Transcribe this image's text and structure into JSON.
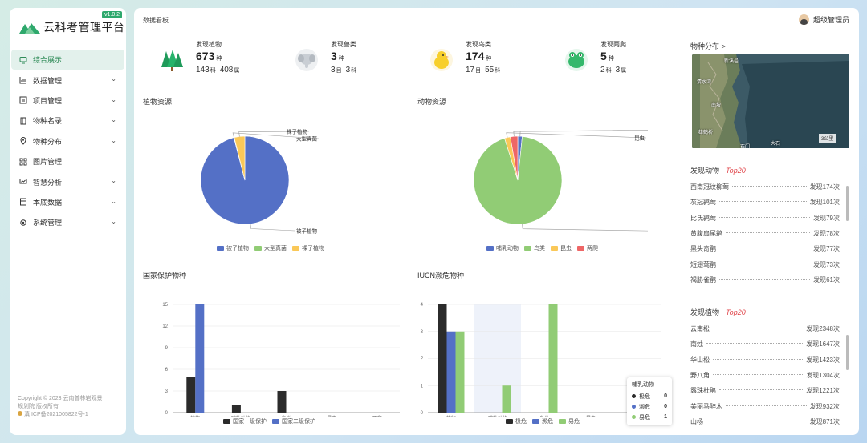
{
  "app": {
    "title": "云科考管理平台",
    "version": "v1.0.2"
  },
  "sidebar": {
    "items": [
      {
        "label": "综合展示",
        "icon": "monitor-icon",
        "active": true
      },
      {
        "label": "数据管理",
        "icon": "chart-icon",
        "arrow": true
      },
      {
        "label": "项目管理",
        "icon": "project-icon",
        "arrow": true
      },
      {
        "label": "物种名录",
        "icon": "book-icon",
        "arrow": true
      },
      {
        "label": "物种分布",
        "icon": "location-icon",
        "arrow": true
      },
      {
        "label": "图片管理",
        "icon": "grid-icon",
        "arrow": false
      },
      {
        "label": "智慧分析",
        "icon": "analysis-icon",
        "arrow": true
      },
      {
        "label": "本底数据",
        "icon": "database-icon",
        "arrow": true
      },
      {
        "label": "系统管理",
        "icon": "gear-icon",
        "arrow": true
      }
    ],
    "footer": {
      "line1": "Copyright © 2023 云南普林岩观景",
      "line2": "规划院 版权所有",
      "line3": "滇 ICP备2021005822号-1"
    }
  },
  "header": {
    "breadcrumb": "数据看板",
    "user": "超级管理员"
  },
  "stats": [
    {
      "label": "发现植物",
      "value": "673",
      "unit": "种",
      "sub1": "143",
      "sub1_unit": "科",
      "sub2": "408",
      "sub2_unit": "属",
      "icon": "tree-icon"
    },
    {
      "label": "发现兽类",
      "value": "3",
      "unit": "种",
      "sub1": "3",
      "sub1_unit": "目",
      "sub2": "3",
      "sub2_unit": "科",
      "icon": "elephant-icon"
    },
    {
      "label": "发现鸟类",
      "value": "174",
      "unit": "种",
      "sub1": "17",
      "sub1_unit": "目",
      "sub2": "55",
      "sub2_unit": "科",
      "icon": "chick-icon"
    },
    {
      "label": "发现两爬",
      "value": "5",
      "unit": "种",
      "sub1": "2",
      "sub1_unit": "科",
      "sub2": "3",
      "sub2_unit": "属",
      "icon": "frog-icon"
    }
  ],
  "colors": {
    "blue": "#5470c6",
    "green": "#91cc75",
    "yellow": "#fac858",
    "red": "#ee6666",
    "dark": "#2b2b2b",
    "brand": "#2ea86c"
  },
  "chart_data": [
    {
      "type": "pie",
      "title": "植物资源",
      "labels": [
        "被子植物",
        "大型真菌",
        "裸子植物"
      ],
      "values": [
        646,
        1,
        26
      ],
      "legend": "bottom"
    },
    {
      "type": "pie",
      "title": "动物资源",
      "labels": [
        "哺乳动物",
        "鸟类",
        "昆虫",
        "两爬"
      ],
      "values": [
        3,
        174,
        4,
        5
      ],
      "legend": "bottom"
    },
    {
      "type": "bar",
      "title": "国家保护物种",
      "categories": [
        "植物",
        "哺乳动物",
        "鸟类",
        "昆虫",
        "两爬"
      ],
      "series": [
        {
          "name": "国家一级保护",
          "values": [
            5,
            1,
            3,
            0,
            0
          ]
        },
        {
          "name": "国家二级保护",
          "values": [
            15,
            0,
            0,
            0,
            0
          ]
        }
      ],
      "yticks": [
        0,
        3,
        6,
        9,
        12,
        15
      ],
      "ylim": [
        0,
        15
      ],
      "legend": "bottom"
    },
    {
      "type": "bar",
      "title": "IUCN濒危物种",
      "categories": [
        "植物",
        "哺乳动物",
        "鸟类",
        "昆虫",
        "两爬"
      ],
      "series": [
        {
          "name": "极危",
          "values": [
            4,
            0,
            0,
            0,
            0
          ]
        },
        {
          "name": "濒危",
          "values": [
            3,
            0,
            0,
            0,
            1
          ]
        },
        {
          "name": "易危",
          "values": [
            3,
            1,
            4,
            0,
            0
          ]
        }
      ],
      "yticks": [
        0,
        1,
        2,
        3,
        4
      ],
      "ylim": [
        0,
        4
      ],
      "legend": "bottom"
    }
  ],
  "tooltip": {
    "title": "哺乳动物",
    "rows": [
      {
        "name": "极危",
        "value": "0"
      },
      {
        "name": "濒危",
        "value": "0"
      },
      {
        "name": "易危",
        "value": "1"
      }
    ]
  },
  "map": {
    "title": "物种分布 >",
    "labels": [
      "新溪邑",
      "清水湾",
      "南坡",
      "雄鹤桥",
      "石门",
      "大石",
      "3公里"
    ]
  },
  "animals": {
    "title": "发现动物",
    "tag": "Top20",
    "rows": [
      {
        "name": "西南冠纹柳莺",
        "count": "发现174次"
      },
      {
        "name": "灰冠鹟莺",
        "count": "发现101次"
      },
      {
        "name": "比氏鹟莺",
        "count": "发现79次"
      },
      {
        "name": "黄腹扇尾鹟",
        "count": "发现78次"
      },
      {
        "name": "黑头奇鹛",
        "count": "发现77次"
      },
      {
        "name": "短翅莺鹛",
        "count": "发现73次"
      },
      {
        "name": "褐胁雀鹛",
        "count": "发现61次"
      }
    ]
  },
  "plants": {
    "title": "发现植物",
    "tag": "Top20",
    "rows": [
      {
        "name": "云南松",
        "count": "发现2348次"
      },
      {
        "name": "南烛",
        "count": "发现1647次"
      },
      {
        "name": "华山松",
        "count": "发现1423次"
      },
      {
        "name": "野八角",
        "count": "发现1304次"
      },
      {
        "name": "露珠杜鹃",
        "count": "发现1221次"
      },
      {
        "name": "美丽马醉木",
        "count": "发现932次"
      },
      {
        "name": "山杨",
        "count": "发现871次"
      }
    ]
  }
}
